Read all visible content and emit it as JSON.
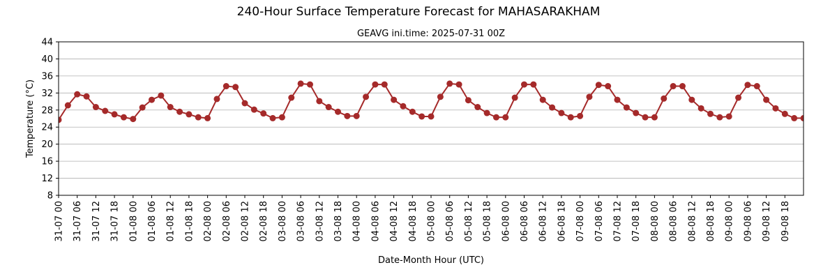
{
  "chart_data": {
    "type": "line",
    "title": "240-Hour Surface Temperature Forecast for MAHASARAKHAM",
    "subtitle": "GEAVG ini.time: 2025-07-31 00Z",
    "xlabel": "Date-Month Hour (UTC)",
    "ylabel": "Temperature (°C)",
    "ylim": [
      8,
      44
    ],
    "yticks": [
      8,
      12,
      16,
      20,
      24,
      28,
      32,
      36,
      40,
      44
    ],
    "grid": "horizontal",
    "line_color": "#a52a2a",
    "x_tick_labels": [
      "31-07 00",
      "31-07 06",
      "31-07 12",
      "31-07 18",
      "01-08 00",
      "01-08 06",
      "01-08 12",
      "01-08 18",
      "02-08 00",
      "02-08 06",
      "02-08 12",
      "02-08 18",
      "03-08 00",
      "03-08 06",
      "03-08 12",
      "03-08 18",
      "04-08 00",
      "04-08 06",
      "04-08 12",
      "04-08 18",
      "05-08 00",
      "05-08 06",
      "05-08 12",
      "05-08 18",
      "06-08 00",
      "06-08 06",
      "06-08 12",
      "06-08 18",
      "07-08 00",
      "07-08 06",
      "07-08 12",
      "07-08 18",
      "08-08 00",
      "08-08 06",
      "08-08 12",
      "08-08 18",
      "09-08 00",
      "09-08 06",
      "09-08 12",
      "09-08 18"
    ],
    "series": [
      {
        "x_hours": [
          0,
          3,
          6,
          9,
          12,
          15,
          18,
          21,
          24,
          27,
          30,
          33,
          36,
          39,
          42,
          45,
          48,
          51,
          54,
          57,
          60,
          63,
          66,
          69,
          72,
          75,
          78,
          81,
          84,
          87,
          90,
          93,
          96,
          99,
          102,
          105,
          108,
          111,
          114,
          117,
          120,
          123,
          126,
          129,
          132,
          135,
          138,
          141,
          144,
          147,
          150,
          153,
          156,
          159,
          162,
          165,
          168,
          171,
          174,
          177,
          180,
          183,
          186,
          189,
          192,
          195,
          198,
          201,
          204,
          207,
          210,
          213,
          216,
          219,
          222,
          225,
          228,
          231,
          234,
          237,
          240
        ],
        "values": [
          25.7,
          29.1,
          31.7,
          31.2,
          28.7,
          27.8,
          27.0,
          26.3,
          25.9,
          28.6,
          30.4,
          31.4,
          28.7,
          27.6,
          27.0,
          26.3,
          26.1,
          30.6,
          33.6,
          33.4,
          29.6,
          28.1,
          27.2,
          26.1,
          26.3,
          30.9,
          34.2,
          34.0,
          30.1,
          28.7,
          27.6,
          26.6,
          26.6,
          31.1,
          34.0,
          34.0,
          30.4,
          28.9,
          27.6,
          26.5,
          26.5,
          31.1,
          34.2,
          34.0,
          30.3,
          28.7,
          27.3,
          26.3,
          26.3,
          30.9,
          34.0,
          34.0,
          30.4,
          28.6,
          27.3,
          26.3,
          26.6,
          31.1,
          33.9,
          33.6,
          30.4,
          28.6,
          27.3,
          26.3,
          26.3,
          30.7,
          33.6,
          33.6,
          30.4,
          28.4,
          27.1,
          26.3,
          26.5,
          30.9,
          33.9,
          33.6,
          30.4,
          28.4,
          27.1,
          26.1,
          26.1
        ]
      }
    ]
  }
}
